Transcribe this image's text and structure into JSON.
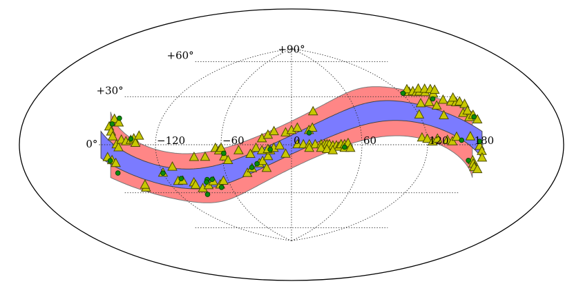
{
  "chart_data": {
    "type": "scatter",
    "projection": "aitoff-hammer all-sky",
    "title": "",
    "xlabel": "",
    "ylabel": "",
    "xlim": [
      -180,
      180
    ],
    "ylim": [
      -90,
      90
    ],
    "grid": true,
    "legend": "none",
    "lon_tick_labels": [
      {
        "value": 0,
        "text": "0"
      },
      {
        "value": -120,
        "text": "−120"
      },
      {
        "value": -60,
        "text": "−60"
      },
      {
        "value": 60,
        "text": "60"
      },
      {
        "value": 120,
        "text": "120"
      },
      {
        "value": 180,
        "text": "180"
      }
    ],
    "lat_tick_labels": [
      {
        "value": 90,
        "text": "+90°"
      },
      {
        "value": 60,
        "text": "+60°"
      },
      {
        "value": 30,
        "text": "+30°"
      },
      {
        "value": 0,
        "text": "0°"
      }
    ],
    "bands": [
      {
        "id": "outer",
        "half_width": 20,
        "color": "#ff8080",
        "opacity": 0.95,
        "edge": "#777777"
      },
      {
        "id": "inner",
        "half_width": 8,
        "color": "#7b7bff",
        "opacity": 1.0,
        "edge": "#444444"
      }
    ],
    "band_curve": {
      "amplitude": 27,
      "phase_deg": 0
    },
    "series": [
      {
        "marker": "triangle",
        "color": "#c8c800",
        "edge": "#4a4a00",
        "points": [
          [
            -172,
            11
          ],
          [
            -170,
            16
          ],
          [
            -168,
            8
          ],
          [
            -165,
            5
          ],
          [
            -163,
            14
          ],
          [
            -160,
            0
          ],
          [
            -158,
            -2
          ],
          [
            -155,
            3
          ],
          [
            -150,
            2
          ],
          [
            -145,
            3
          ],
          [
            -142,
            4
          ],
          [
            -140,
            1
          ],
          [
            -137,
            6
          ],
          [
            -172,
            -8
          ],
          [
            -168,
            -10
          ],
          [
            -165,
            -12
          ],
          [
            -150,
            -30
          ],
          [
            -148,
            -28
          ],
          [
            -110,
            -28
          ],
          [
            -105,
            -28
          ],
          [
            -95,
            -30
          ],
          [
            -95,
            -32
          ],
          [
            -90,
            -35
          ],
          [
            -82,
            -33
          ],
          [
            -75,
            -30
          ],
          [
            -70,
            -33
          ],
          [
            -65,
            -30
          ],
          [
            -120,
            -21
          ],
          [
            -108,
            -17
          ],
          [
            -85,
            -10
          ],
          [
            -75,
            -10
          ],
          [
            -65,
            -3
          ],
          [
            -62,
            -5
          ],
          [
            -58,
            -10
          ],
          [
            -55,
            -13
          ],
          [
            -60,
            -3
          ],
          [
            -40,
            -24
          ],
          [
            -35,
            -20
          ],
          [
            -28,
            -16
          ],
          [
            -25,
            -14
          ],
          [
            -22,
            -20
          ],
          [
            -20,
            -10
          ],
          [
            -18,
            -5
          ],
          [
            -45,
            -5
          ],
          [
            -35,
            -8
          ],
          [
            -30,
            -3
          ],
          [
            -25,
            -5
          ],
          [
            -20,
            -4
          ],
          [
            -15,
            -3
          ],
          [
            -10,
            -1
          ],
          [
            -5,
            -8
          ],
          [
            -25,
            5
          ],
          [
            -20,
            8
          ],
          [
            -15,
            11
          ],
          [
            -5,
            10
          ],
          [
            0,
            12
          ],
          [
            5,
            14
          ],
          [
            15,
            12
          ],
          [
            18,
            14
          ],
          [
            20,
            28
          ],
          [
            5,
            0
          ],
          [
            10,
            0
          ],
          [
            15,
            0
          ],
          [
            20,
            0
          ],
          [
            25,
            0
          ],
          [
            28,
            0
          ],
          [
            30,
            0
          ],
          [
            32,
            0
          ],
          [
            35,
            -1
          ],
          [
            38,
            -1
          ],
          [
            40,
            -2
          ],
          [
            42,
            0
          ],
          [
            45,
            0
          ],
          [
            48,
            1
          ],
          [
            15,
            -3
          ],
          [
            25,
            -3
          ],
          [
            30,
            -4
          ],
          [
            35,
            -5
          ],
          [
            45,
            -3
          ],
          [
            50,
            -3
          ],
          [
            130,
            39
          ],
          [
            131,
            41
          ],
          [
            135,
            39
          ],
          [
            138,
            38
          ],
          [
            142,
            38
          ],
          [
            145,
            40
          ],
          [
            148,
            37
          ],
          [
            152,
            39
          ],
          [
            155,
            35
          ],
          [
            158,
            38
          ],
          [
            162,
            37
          ],
          [
            130,
            30
          ],
          [
            140,
            30
          ],
          [
            145,
            27
          ],
          [
            158,
            30
          ],
          [
            165,
            28
          ],
          [
            170,
            27
          ],
          [
            172,
            30
          ],
          [
            175,
            27
          ],
          [
            178,
            25
          ],
          [
            120,
            22
          ],
          [
            145,
            20
          ],
          [
            168,
            20
          ],
          [
            172,
            17
          ],
          [
            175,
            21
          ],
          [
            178,
            18
          ],
          [
            180,
            15
          ],
          [
            115,
            5
          ],
          [
            120,
            4
          ],
          [
            125,
            2
          ],
          [
            130,
            4
          ],
          [
            140,
            3
          ],
          [
            145,
            2
          ],
          [
            150,
            5
          ],
          [
            165,
            5
          ],
          [
            175,
            -1
          ],
          [
            178,
            -4
          ],
          [
            180,
            -8
          ],
          [
            170,
            -10
          ],
          [
            172,
            -12
          ],
          [
            175,
            -14
          ],
          [
            180,
            -15
          ]
        ]
      },
      {
        "marker": "circle",
        "color": "#0b8a0b",
        "edge": "#003300",
        "points": [
          [
            -170,
            13
          ],
          [
            -170,
            -10
          ],
          [
            -168,
            -18
          ],
          [
            -165,
            17
          ],
          [
            -145,
            4
          ],
          [
            -80,
            -28
          ],
          [
            -82,
            -30
          ],
          [
            -75,
            -28
          ],
          [
            -70,
            -35
          ],
          [
            -90,
            -40
          ],
          [
            -105,
            -26
          ],
          [
            -120,
            -21
          ],
          [
            -58,
            -7
          ],
          [
            -35,
            -19
          ],
          [
            -30,
            -16
          ],
          [
            -18,
            -4
          ],
          [
            15,
            10
          ],
          [
            45,
            -2
          ],
          [
            148,
            32
          ],
          [
            178,
            17
          ],
          [
            175,
            2
          ],
          [
            155,
            3
          ],
          [
            165,
            -10
          ],
          [
            122,
            39
          ]
        ]
      }
    ]
  }
}
